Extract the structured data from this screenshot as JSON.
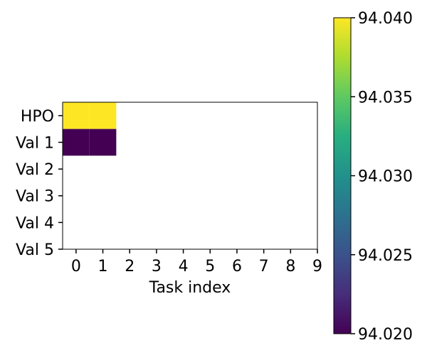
{
  "chart_data": {
    "type": "heatmap",
    "xlabel": "Task index",
    "x_ticks": [
      "0",
      "1",
      "2",
      "3",
      "4",
      "5",
      "6",
      "7",
      "8",
      "9"
    ],
    "y_ticks": [
      "HPO",
      "Val 1",
      "Val 2",
      "Val 3",
      "Val 4",
      "Val 5"
    ],
    "cells": [
      {
        "row": "HPO",
        "col": 0,
        "value": 94.04
      },
      {
        "row": "HPO",
        "col": 1,
        "value": 94.04
      },
      {
        "row": "Val 1",
        "col": 0,
        "value": 94.02
      },
      {
        "row": "Val 1",
        "col": 1,
        "value": 94.02
      }
    ],
    "colormap": "viridis",
    "color_range": [
      94.02,
      94.04
    ],
    "colorbar_ticks": [
      "94.020",
      "94.025",
      "94.030",
      "94.035",
      "94.040"
    ],
    "colors": {
      "low": "#440154",
      "high": "#fde725"
    },
    "grid": false
  }
}
